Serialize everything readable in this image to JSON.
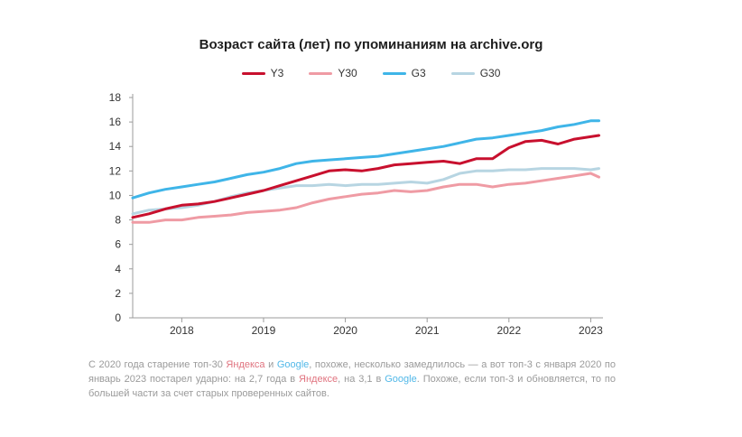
{
  "chart_data": {
    "type": "line",
    "title": "Возраст сайта (лет) по упоминаниям на archive.org",
    "xlabel": "",
    "ylabel": "",
    "ylim": [
      0,
      18
    ],
    "yticks": [
      0,
      2,
      4,
      6,
      8,
      10,
      12,
      14,
      16,
      18
    ],
    "xticks": [
      "2018",
      "2019",
      "2020",
      "2021",
      "2022",
      "2023"
    ],
    "xtick_values": [
      2018.0,
      2019.0,
      2020.0,
      2021.0,
      2022.0,
      2023.0
    ],
    "xlim": [
      2017.4,
      2023.15
    ],
    "x": [
      2017.4,
      2017.6,
      2017.8,
      2018.0,
      2018.2,
      2018.4,
      2018.6,
      2018.8,
      2019.0,
      2019.2,
      2019.4,
      2019.6,
      2019.8,
      2020.0,
      2020.2,
      2020.4,
      2020.6,
      2020.8,
      2021.0,
      2021.2,
      2021.4,
      2021.6,
      2021.8,
      2022.0,
      2022.2,
      2022.4,
      2022.6,
      2022.8,
      2023.0,
      2023.1
    ],
    "grid": false,
    "legend_position": "top-center",
    "series": [
      {
        "name": "Y3",
        "color": "#c8102e",
        "values": [
          8.2,
          8.5,
          8.9,
          9.2,
          9.3,
          9.5,
          9.8,
          10.1,
          10.4,
          10.8,
          11.2,
          11.6,
          12.0,
          12.1,
          12.0,
          12.2,
          12.5,
          12.6,
          12.7,
          12.8,
          12.6,
          13.0,
          13.0,
          13.9,
          14.4,
          14.5,
          14.2,
          14.6,
          14.8,
          14.9
        ]
      },
      {
        "name": "Y30",
        "color": "#ef9ba4",
        "values": [
          7.8,
          7.8,
          8.0,
          8.0,
          8.2,
          8.3,
          8.4,
          8.6,
          8.7,
          8.8,
          9.0,
          9.4,
          9.7,
          9.9,
          10.1,
          10.2,
          10.4,
          10.3,
          10.4,
          10.7,
          10.9,
          10.9,
          10.7,
          10.9,
          11.0,
          11.2,
          11.4,
          11.6,
          11.8,
          11.5
        ]
      },
      {
        "name": "G3",
        "color": "#3fb5e8",
        "values": [
          9.8,
          10.2,
          10.5,
          10.7,
          10.9,
          11.1,
          11.4,
          11.7,
          11.9,
          12.2,
          12.6,
          12.8,
          12.9,
          13.0,
          13.1,
          13.2,
          13.4,
          13.6,
          13.8,
          14.0,
          14.3,
          14.6,
          14.7,
          14.9,
          15.1,
          15.3,
          15.6,
          15.8,
          16.1,
          16.1
        ]
      },
      {
        "name": "G30",
        "color": "#b7d5e2",
        "values": [
          8.5,
          8.8,
          8.9,
          9.0,
          9.2,
          9.5,
          9.9,
          10.2,
          10.4,
          10.6,
          10.8,
          10.8,
          10.9,
          10.8,
          10.9,
          10.9,
          11.0,
          11.1,
          11.0,
          11.3,
          11.8,
          12.0,
          12.0,
          12.1,
          12.1,
          12.2,
          12.2,
          12.2,
          12.1,
          12.2
        ]
      }
    ]
  },
  "caption": {
    "t1": "С 2020 года старение топ-30 ",
    "yandex1": "Яндекса",
    "t2": " и ",
    "google1": "Google",
    "t3": ", похоже, несколько замедлилось — а вот топ-3 с января 2020 по январь 2023 постарел ударно: на 2,7 года в ",
    "yandex2": "Яндексе",
    "t4": ", на 3,1 в ",
    "google2": "Google",
    "t5": ". Похоже, если топ-3 и обновляется, то по большей части за счет старых проверенных сайтов."
  }
}
